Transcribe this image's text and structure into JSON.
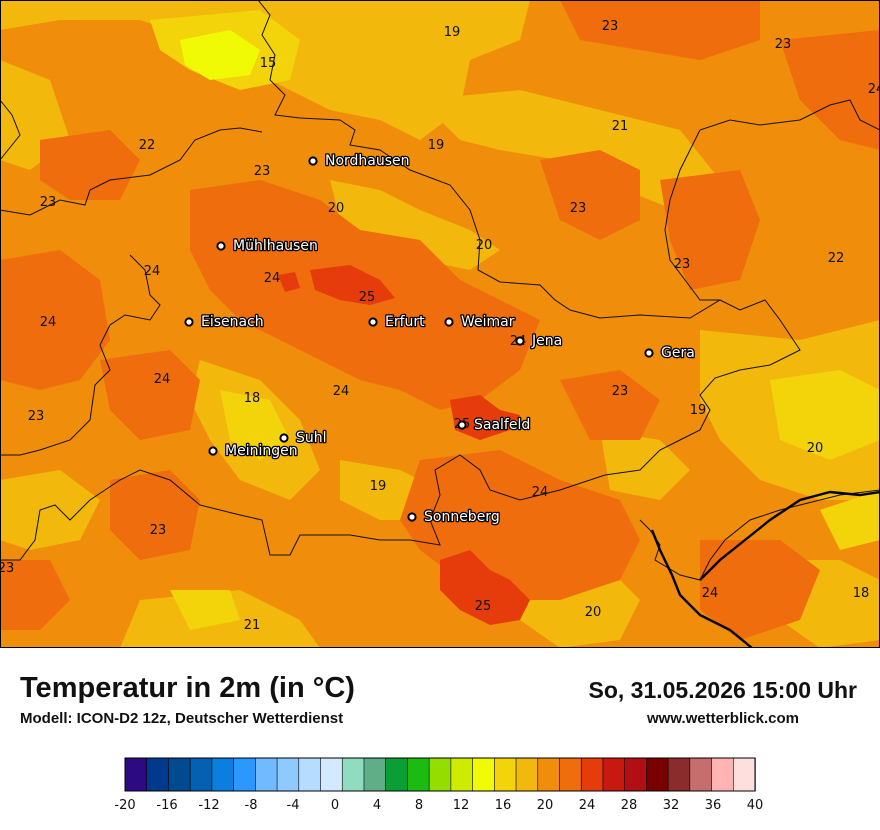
{
  "header": {
    "title": "Temperatur in 2m (in °C)",
    "model": "Modell: ICON-D2 12z, Deutscher Wetterdienst",
    "datetime": "So, 31.05.2026 15:00 Uhr",
    "website": "www.wetterblick.com"
  },
  "cities": [
    {
      "name": "Nordhausen"
    },
    {
      "name": "Mühlhausen"
    },
    {
      "name": "Eisenach"
    },
    {
      "name": "Erfurt"
    },
    {
      "name": "Weimar"
    },
    {
      "name": "Jena"
    },
    {
      "name": "Gera"
    },
    {
      "name": "Saalfeld"
    },
    {
      "name": "Suhl"
    },
    {
      "name": "Meiningen"
    },
    {
      "name": "Sonneberg"
    }
  ],
  "temperature_labels": [
    "19",
    "23",
    "23",
    "15",
    "22",
    "21",
    "19",
    "23",
    "23",
    "20",
    "23",
    "20",
    "24",
    "23",
    "22",
    "24",
    "24",
    "25",
    "24",
    "24",
    "24",
    "18",
    "23",
    "25",
    "23",
    "19",
    "20",
    "19",
    "24",
    "23",
    "23",
    "24",
    "18",
    "21",
    "25",
    "20",
    "24"
  ],
  "legend": {
    "ticks": [
      "-20",
      "-16",
      "-12",
      "-8",
      "-4",
      "0",
      "4",
      "8",
      "12",
      "16",
      "20",
      "24",
      "28",
      "32",
      "36",
      "40"
    ],
    "colors": [
      "#2b0a82",
      "#003a8c",
      "#004b8f",
      "#0461b2",
      "#0a7fe0",
      "#2a98ff",
      "#72baff",
      "#8ec9ff",
      "#b6dcff",
      "#d3e9ff",
      "#8fdcc0",
      "#5fae88",
      "#0b9e35",
      "#1cbb12",
      "#95dc00",
      "#cdec00",
      "#f1fa05",
      "#f3d40a",
      "#f2b90c",
      "#f08d0a",
      "#ef6d0d",
      "#e63b0b",
      "#c81810",
      "#b20f14",
      "#7a0000",
      "#8a2c2c",
      "#c66e6e",
      "#ffb3b3",
      "#ffdede"
    ]
  }
}
